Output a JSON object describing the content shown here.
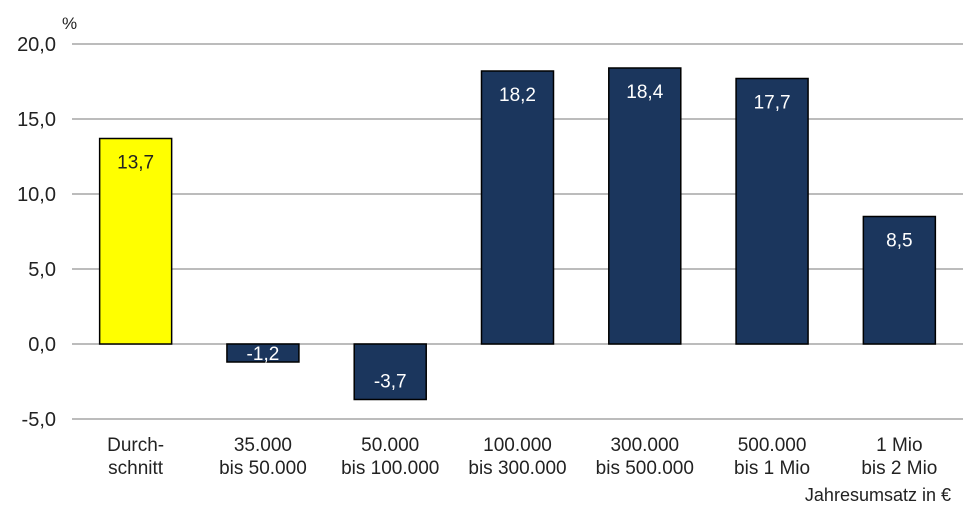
{
  "chart_data": {
    "type": "bar",
    "y_unit": "%",
    "xlabel": "Jahresumsatz in €",
    "ylabel": "",
    "ylim": [
      -5,
      20
    ],
    "y_ticks": [
      20,
      15,
      10,
      5,
      0,
      -5
    ],
    "y_tick_labels": [
      "20,0",
      "15,0",
      "10,0",
      "5,0",
      "0,0",
      "-5,0"
    ],
    "grid": true,
    "legend": "none",
    "categories": [
      [
        "Durch-",
        "schnitt"
      ],
      [
        "35.000",
        "bis 50.000"
      ],
      [
        "50.000",
        "bis 100.000"
      ],
      [
        "100.000",
        "bis 300.000"
      ],
      [
        "300.000",
        "bis 500.000"
      ],
      [
        "500.000",
        "bis 1 Mio"
      ],
      [
        "1 Mio",
        "bis 2 Mio"
      ]
    ],
    "values": [
      13.7,
      -1.2,
      -3.7,
      18.2,
      18.4,
      17.7,
      8.5
    ],
    "value_labels": [
      "13,7",
      "-1,2",
      "-3,7",
      "18,2",
      "18,4",
      "17,7",
      "8,5"
    ],
    "colors": {
      "highlight": "#ffff00",
      "bar": "#1b365d",
      "highlight_label": "#222222",
      "bar_label": "#ffffff",
      "grid": "#a6a6a6",
      "border": "#000000"
    },
    "highlight_index": 0
  }
}
